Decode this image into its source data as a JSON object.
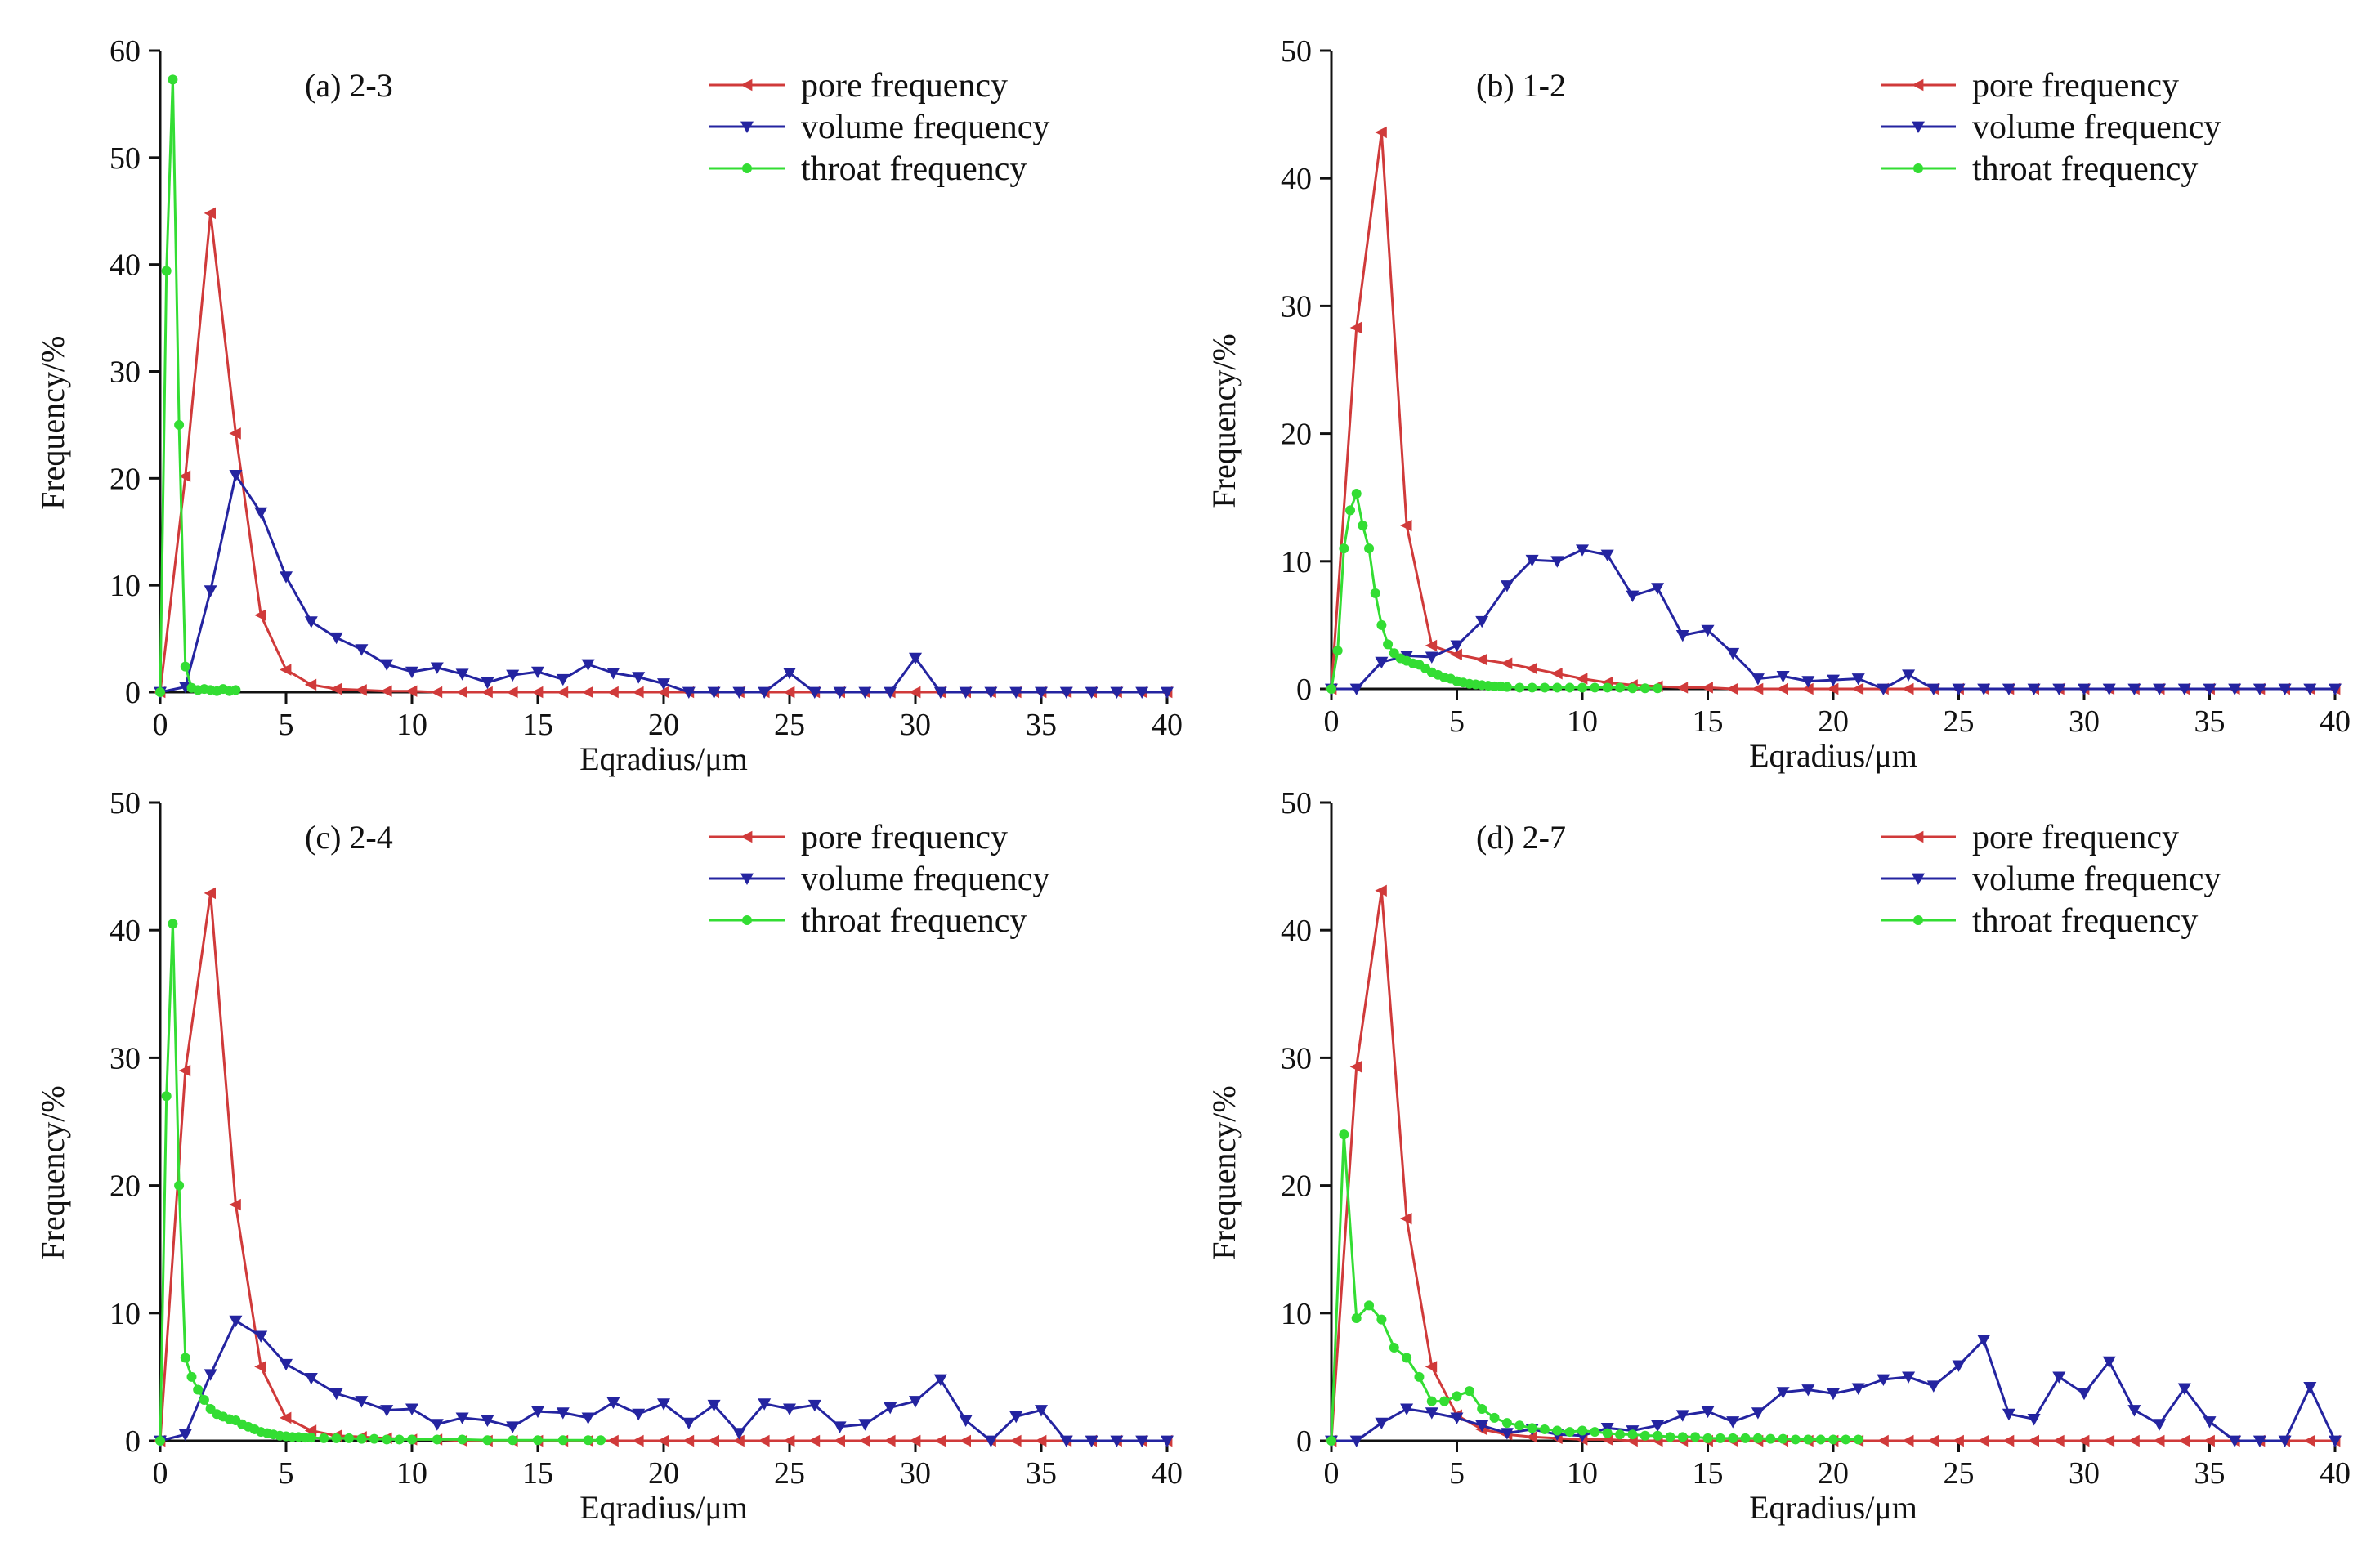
{
  "figure": {
    "ylabel": "Frequency/%",
    "xlabel": "Eqradius/μm"
  },
  "series_colors": {
    "pore frequency": "#d03a3a",
    "volume frequency": "#2424a0",
    "throat frequency": "#33dd33"
  },
  "chart_data": [
    {
      "type": "line",
      "title": "(a) 2-3",
      "xlabel": "Eqradius/μm",
      "ylabel": "Frequency/%",
      "xlim": [
        0,
        40
      ],
      "ylim": [
        0,
        60
      ],
      "xticks": [
        0,
        5,
        10,
        15,
        20,
        25,
        30,
        35,
        40
      ],
      "yticks": [
        0,
        10,
        20,
        30,
        40,
        50,
        60
      ],
      "legend_position": "top-right",
      "series": [
        {
          "name": "pore frequency",
          "color": "#d03a3a",
          "marker": "triangle-left",
          "x": [
            0,
            1,
            2,
            3,
            4,
            5,
            6,
            7,
            8,
            9,
            10,
            11,
            12,
            13,
            14,
            15,
            16,
            17,
            18,
            19,
            20,
            21,
            22,
            23,
            24,
            25,
            26,
            27,
            28,
            29,
            30,
            31,
            32,
            33,
            34,
            35,
            36,
            37,
            38,
            39,
            40
          ],
          "y": [
            0,
            20.2,
            44.8,
            24.2,
            7.2,
            2.1,
            0.7,
            0.3,
            0.2,
            0.1,
            0.1,
            0,
            0,
            0,
            0,
            0,
            0,
            0,
            0,
            0,
            0,
            0,
            0,
            0,
            0,
            0,
            0,
            0,
            0,
            0,
            0,
            0,
            0,
            0,
            0,
            0,
            0,
            0,
            0,
            0,
            0
          ]
        },
        {
          "name": "volume frequency",
          "color": "#2424a0",
          "marker": "triangle-down",
          "x": [
            0,
            1,
            2,
            3,
            4,
            5,
            6,
            7,
            8,
            9,
            10,
            11,
            12,
            13,
            14,
            15,
            16,
            17,
            18,
            19,
            20,
            21,
            22,
            23,
            24,
            25,
            26,
            27,
            28,
            29,
            30,
            31,
            32,
            33,
            34,
            35,
            36,
            37,
            38,
            39,
            40
          ],
          "y": [
            0,
            0.5,
            9.5,
            20.3,
            16.8,
            10.8,
            6.6,
            5.1,
            4.0,
            2.6,
            1.9,
            2.3,
            1.7,
            0.9,
            1.6,
            1.9,
            1.2,
            2.6,
            1.8,
            1.4,
            0.8,
            0,
            0,
            0,
            0,
            1.8,
            0,
            0,
            0,
            0,
            3.2,
            0,
            0,
            0,
            0,
            0,
            0,
            0,
            0,
            0,
            0
          ]
        },
        {
          "name": "throat frequency",
          "color": "#33dd33",
          "marker": "circle",
          "x": [
            0,
            0.25,
            0.5,
            0.75,
            1.0,
            1.25,
            1.5,
            1.75,
            2.0,
            2.25,
            2.5,
            2.75,
            3.0
          ],
          "y": [
            0,
            39.4,
            57.3,
            25.0,
            2.4,
            0.4,
            0.2,
            0.3,
            0.2,
            0.1,
            0.3,
            0.1,
            0.2
          ]
        }
      ]
    },
    {
      "type": "line",
      "title": "(b) 1-2",
      "xlabel": "Eqradius/μm",
      "ylabel": "Frequency/%",
      "xlim": [
        0,
        40
      ],
      "ylim": [
        0,
        50
      ],
      "xticks": [
        0,
        5,
        10,
        15,
        20,
        25,
        30,
        35,
        40
      ],
      "yticks": [
        0,
        10,
        20,
        30,
        40,
        50
      ],
      "legend_position": "top-right",
      "series": [
        {
          "name": "pore frequency",
          "color": "#d03a3a",
          "marker": "triangle-left",
          "x": [
            0,
            1,
            2,
            3,
            4,
            5,
            6,
            7,
            8,
            9,
            10,
            11,
            12,
            13,
            14,
            15,
            16,
            17,
            18,
            19,
            20,
            21,
            22,
            23,
            24,
            25,
            26,
            27,
            28,
            29,
            30,
            31,
            32,
            33,
            34,
            35,
            36,
            37,
            38,
            39,
            40
          ],
          "y": [
            0,
            28.3,
            43.6,
            12.8,
            3.4,
            2.7,
            2.3,
            2.0,
            1.6,
            1.2,
            0.8,
            0.5,
            0.3,
            0.2,
            0.1,
            0.1,
            0,
            0,
            0,
            0,
            0,
            0,
            0,
            0,
            0,
            0,
            0,
            0,
            0,
            0,
            0,
            0,
            0,
            0,
            0,
            0,
            0,
            0,
            0,
            0,
            0
          ]
        },
        {
          "name": "volume frequency",
          "color": "#2424a0",
          "marker": "triangle-down",
          "x": [
            0,
            1,
            2,
            3,
            4,
            5,
            6,
            7,
            8,
            9,
            10,
            11,
            12,
            13,
            14,
            15,
            16,
            17,
            18,
            19,
            20,
            21,
            22,
            23,
            24,
            25,
            26,
            27,
            28,
            29,
            30,
            31,
            32,
            33,
            34,
            35,
            36,
            37,
            38,
            39,
            40
          ],
          "y": [
            0,
            0,
            2.1,
            2.6,
            2.5,
            3.4,
            5.3,
            8.1,
            10.1,
            10.0,
            10.9,
            10.5,
            7.3,
            7.9,
            4.2,
            4.6,
            2.8,
            0.8,
            1.0,
            0.6,
            0.7,
            0.8,
            0,
            1.1,
            0,
            0,
            0,
            0,
            0,
            0,
            0,
            0,
            0,
            0,
            0,
            0,
            0,
            0,
            0,
            0,
            0
          ]
        },
        {
          "name": "throat frequency",
          "color": "#33dd33",
          "marker": "circle",
          "x": [
            0,
            0.25,
            0.5,
            0.75,
            1.0,
            1.25,
            1.5,
            1.75,
            2.0,
            2.25,
            2.5,
            2.75,
            3.0,
            3.25,
            3.5,
            3.75,
            4.0,
            4.25,
            4.5,
            4.75,
            5.0,
            5.25,
            5.5,
            5.75,
            6.0,
            6.25,
            6.5,
            6.75,
            7.0,
            7.5,
            8.0,
            8.5,
            9.0,
            9.5,
            10.0,
            10.5,
            11.0,
            11.5,
            12.0,
            12.5,
            13.0
          ],
          "y": [
            0,
            3.0,
            11.0,
            14.0,
            15.3,
            12.8,
            11.0,
            7.5,
            5.0,
            3.5,
            2.8,
            2.4,
            2.2,
            2.0,
            1.9,
            1.6,
            1.3,
            1.1,
            0.9,
            0.8,
            0.6,
            0.5,
            0.4,
            0.35,
            0.3,
            0.25,
            0.2,
            0.2,
            0.15,
            0.1,
            0.1,
            0.1,
            0.1,
            0.1,
            0.1,
            0.1,
            0.1,
            0.1,
            0.05,
            0.05,
            0.05
          ]
        }
      ]
    },
    {
      "type": "line",
      "title": "(c) 2-4",
      "xlabel": "Eqradius/μm",
      "ylabel": "Frequency/%",
      "xlim": [
        0,
        40
      ],
      "ylim": [
        0,
        50
      ],
      "xticks": [
        0,
        5,
        10,
        15,
        20,
        25,
        30,
        35,
        40
      ],
      "yticks": [
        0,
        10,
        20,
        30,
        40,
        50
      ],
      "legend_position": "top-right",
      "series": [
        {
          "name": "pore frequency",
          "color": "#d03a3a",
          "marker": "triangle-left",
          "x": [
            0,
            1,
            2,
            3,
            4,
            5,
            6,
            7,
            8,
            9,
            10,
            11,
            12,
            13,
            14,
            15,
            16,
            17,
            18,
            19,
            20,
            21,
            22,
            23,
            24,
            25,
            26,
            27,
            28,
            29,
            30,
            31,
            32,
            33,
            34,
            35,
            36,
            37,
            38,
            39,
            40
          ],
          "y": [
            0,
            29.0,
            42.9,
            18.5,
            5.8,
            1.8,
            0.8,
            0.4,
            0.3,
            0.2,
            0.1,
            0.1,
            0,
            0,
            0,
            0,
            0,
            0,
            0,
            0,
            0,
            0,
            0,
            0,
            0,
            0,
            0,
            0,
            0,
            0,
            0,
            0,
            0,
            0,
            0,
            0,
            0,
            0,
            0,
            0,
            0
          ]
        },
        {
          "name": "volume frequency",
          "color": "#2424a0",
          "marker": "triangle-down",
          "x": [
            0,
            1,
            2,
            3,
            4,
            5,
            6,
            7,
            8,
            9,
            10,
            11,
            12,
            13,
            14,
            15,
            16,
            17,
            18,
            19,
            20,
            21,
            22,
            23,
            24,
            25,
            26,
            27,
            28,
            29,
            30,
            31,
            32,
            33,
            34,
            35,
            36,
            37,
            38,
            39,
            40
          ],
          "y": [
            0,
            0.5,
            5.2,
            9.4,
            8.2,
            6.0,
            4.9,
            3.7,
            3.1,
            2.4,
            2.5,
            1.3,
            1.8,
            1.6,
            1.1,
            2.3,
            2.2,
            1.8,
            3.0,
            2.1,
            2.9,
            1.4,
            2.8,
            0.6,
            2.9,
            2.5,
            2.8,
            1.1,
            1.3,
            2.6,
            3.1,
            4.8,
            1.6,
            0,
            1.9,
            2.4,
            0,
            0,
            0,
            0,
            0
          ]
        },
        {
          "name": "throat frequency",
          "color": "#33dd33",
          "marker": "circle",
          "x": [
            0,
            0.25,
            0.5,
            0.75,
            1.0,
            1.25,
            1.5,
            1.75,
            2.0,
            2.25,
            2.5,
            2.75,
            3.0,
            3.25,
            3.5,
            3.75,
            4.0,
            4.25,
            4.5,
            4.75,
            5.0,
            5.25,
            5.5,
            5.75,
            6.0,
            6.5,
            7.0,
            7.5,
            8.0,
            8.5,
            9.0,
            9.5,
            10.0,
            11.0,
            12.0,
            13.0,
            14.0,
            15.0,
            16.0,
            17.0,
            17.5
          ],
          "y": [
            0,
            27.0,
            40.5,
            20.0,
            6.5,
            5.0,
            4.0,
            3.2,
            2.5,
            2.1,
            1.9,
            1.7,
            1.6,
            1.3,
            1.1,
            0.9,
            0.7,
            0.6,
            0.5,
            0.4,
            0.35,
            0.3,
            0.3,
            0.25,
            0.25,
            0.2,
            0.2,
            0.2,
            0.15,
            0.15,
            0.1,
            0.1,
            0.1,
            0.1,
            0.1,
            0.05,
            0.05,
            0.05,
            0.05,
            0.05,
            0.05
          ]
        }
      ]
    },
    {
      "type": "line",
      "title": "(d) 2-7",
      "xlabel": "Eqradius/μm",
      "ylabel": "Frequency/%",
      "xlim": [
        0,
        40
      ],
      "ylim": [
        0,
        50
      ],
      "xticks": [
        0,
        5,
        10,
        15,
        20,
        25,
        30,
        35,
        40
      ],
      "yticks": [
        0,
        10,
        20,
        30,
        40,
        50
      ],
      "legend_position": "top-right",
      "series": [
        {
          "name": "pore frequency",
          "color": "#d03a3a",
          "marker": "triangle-left",
          "x": [
            0,
            1,
            2,
            3,
            4,
            5,
            6,
            7,
            8,
            9,
            10,
            11,
            12,
            13,
            14,
            15,
            16,
            17,
            18,
            19,
            20,
            21,
            22,
            23,
            24,
            25,
            26,
            27,
            28,
            29,
            30,
            31,
            32,
            33,
            34,
            35,
            36,
            37,
            38,
            39,
            40
          ],
          "y": [
            0,
            29.3,
            43.1,
            17.4,
            5.8,
            2.0,
            0.9,
            0.5,
            0.3,
            0.2,
            0.1,
            0.1,
            0,
            0,
            0,
            0,
            0,
            0,
            0,
            0,
            0,
            0,
            0,
            0,
            0,
            0,
            0,
            0,
            0,
            0,
            0,
            0,
            0,
            0,
            0,
            0,
            0,
            0,
            0,
            0,
            0
          ]
        },
        {
          "name": "volume frequency",
          "color": "#2424a0",
          "marker": "triangle-down",
          "x": [
            0,
            1,
            2,
            3,
            4,
            5,
            6,
            7,
            8,
            9,
            10,
            11,
            12,
            13,
            14,
            15,
            16,
            17,
            18,
            19,
            20,
            21,
            22,
            23,
            24,
            25,
            26,
            27,
            28,
            29,
            30,
            31,
            32,
            33,
            34,
            35,
            36,
            37,
            38,
            39,
            40
          ],
          "y": [
            0,
            0,
            1.4,
            2.5,
            2.2,
            1.8,
            1.2,
            0.6,
            0.9,
            0.5,
            0.4,
            1.0,
            0.8,
            1.2,
            2.0,
            2.3,
            1.5,
            2.2,
            3.8,
            4.0,
            3.7,
            4.1,
            4.8,
            5.0,
            4.3,
            5.9,
            7.9,
            2.1,
            1.7,
            5.0,
            3.7,
            6.2,
            2.4,
            1.3,
            4.1,
            1.5,
            0,
            0,
            0,
            4.2,
            0
          ]
        },
        {
          "name": "throat frequency",
          "color": "#33dd33",
          "marker": "circle",
          "x": [
            0,
            0.5,
            1.0,
            1.5,
            2.0,
            2.5,
            3.0,
            3.5,
            4.0,
            4.5,
            5.0,
            5.5,
            6.0,
            6.5,
            7.0,
            7.5,
            8.0,
            8.5,
            9.0,
            9.5,
            10.0,
            10.5,
            11.0,
            11.5,
            12.0,
            12.5,
            13.0,
            13.5,
            14.0,
            14.5,
            15.0,
            15.5,
            16.0,
            16.5,
            17.0,
            17.5,
            18.0,
            18.5,
            19.0,
            19.5,
            20.0,
            20.5,
            21.0
          ],
          "y": [
            0,
            24.0,
            9.6,
            10.6,
            9.5,
            7.3,
            6.5,
            5.0,
            3.1,
            3.1,
            3.5,
            3.9,
            2.5,
            1.8,
            1.4,
            1.2,
            1.0,
            0.9,
            0.8,
            0.7,
            0.8,
            0.7,
            0.6,
            0.5,
            0.5,
            0.4,
            0.4,
            0.3,
            0.3,
            0.3,
            0.2,
            0.2,
            0.2,
            0.2,
            0.2,
            0.15,
            0.15,
            0.1,
            0.1,
            0.1,
            0.1,
            0.1,
            0.1
          ]
        }
      ]
    }
  ]
}
